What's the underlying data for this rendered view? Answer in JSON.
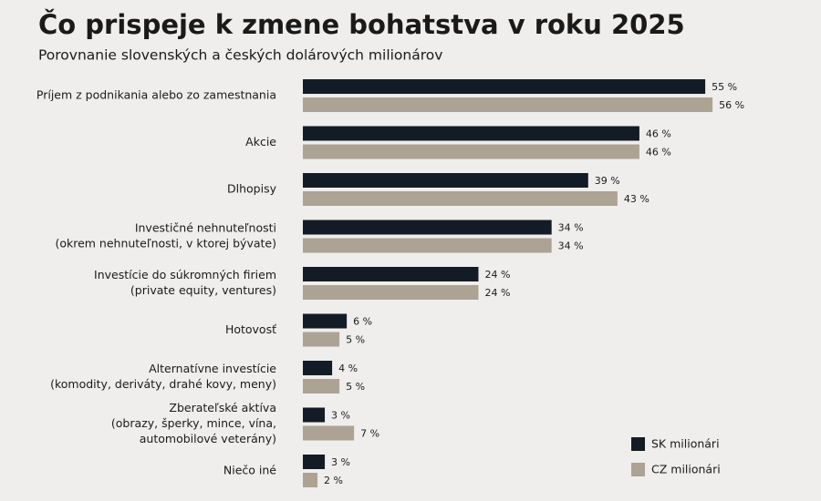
{
  "chart_data": {
    "type": "bar",
    "orientation": "horizontal",
    "title": "Čo prispeje k zmene bohatstva v roku 2025",
    "subtitle": "Porovnanie slovenských a českých dolárových milionárov",
    "categories": [
      [
        "Príjem z podnikania alebo zo zamestnania"
      ],
      [
        "Akcie"
      ],
      [
        "Dlhopisy"
      ],
      [
        "Investičné nehnuteľnosti",
        "(okrem nehnuteľnosti, v ktorej bývate)"
      ],
      [
        "Investície do súkromných firiem",
        "(private equity, ventures)"
      ],
      [
        "Hotovosť"
      ],
      [
        "Alternatívne investície",
        "(komodity, deriváty, drahé kovy, meny)"
      ],
      [
        "Zberateľské aktíva",
        "(obrazy, šperky, mince, vína,",
        "automobilové veterány)"
      ],
      [
        "Niečo iné"
      ]
    ],
    "series": [
      {
        "name": "SK milionári",
        "color": "#131c26",
        "values": [
          55,
          46,
          39,
          34,
          24,
          6,
          4,
          3,
          3
        ],
        "value_labels": [
          "55 %",
          "46 %",
          "39 %",
          "34 %",
          "24 %",
          "6 %",
          "4 %",
          "3 %",
          "3 %"
        ]
      },
      {
        "name": "CZ milionári",
        "color": "#aca395",
        "values": [
          56,
          46,
          43,
          34,
          24,
          5,
          5,
          7,
          2
        ],
        "value_labels": [
          "56 %",
          "46 %",
          "43 %",
          "34 %",
          "24 %",
          "5 %",
          "5 %",
          "7 %",
          "2 %"
        ]
      }
    ],
    "legend_position": "lower right"
  }
}
